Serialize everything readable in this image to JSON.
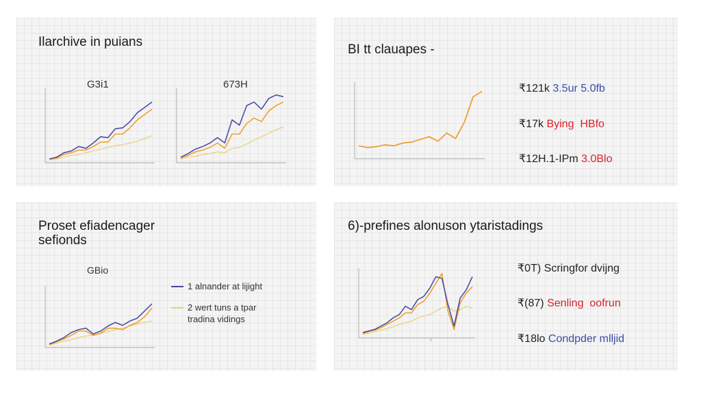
{
  "panels": {
    "tl": {
      "title": "Ilarchive in puians",
      "charts": [
        {
          "label": "G3i1"
        },
        {
          "label": "673H"
        }
      ]
    },
    "tr": {
      "title": "BI tt clauapes -",
      "stats": [
        {
          "prefix": "₹121k",
          "value": "3.5ur 5.0fb",
          "color": "#3a4ea8"
        },
        {
          "prefix": "₹17k",
          "value": "Bying  HBfo",
          "color": "#d8222a",
          "value_color": "#d8222a"
        },
        {
          "prefix": "₹12H.1-IPm",
          "value": "3.0Blo",
          "color": "#d8222a"
        }
      ]
    },
    "bl": {
      "title_line1": "Proset efiadencager",
      "title_line2": "sefionds",
      "chart_label": "GBio",
      "legend": [
        {
          "text": "1 alnander at lijight",
          "color": "#4a4aa0"
        },
        {
          "text": "2 wert tuns a tpar",
          "text2": "tradina vidings",
          "color": "#e8d070"
        }
      ]
    },
    "br": {
      "title": "6)-prefines alonuson ytaristadings",
      "stats": [
        {
          "prefix": "₹0T)",
          "value": "Scringfor dvijng",
          "color": "#222222"
        },
        {
          "prefix": "₹(87)",
          "value": "Senling  oofrun",
          "color": "#d8222a"
        },
        {
          "prefix": "₹18lo",
          "value": "Condpder mlljid",
          "color": "#3a4ea8"
        }
      ]
    }
  },
  "colors": {
    "series_blue": "#4b4fa3",
    "series_orange": "#f0a030",
    "series_yellow": "#e8d070"
  },
  "chart_data": [
    {
      "type": "line",
      "title": "G3i1",
      "x": [
        0,
        1,
        2,
        3,
        4,
        5,
        6,
        7,
        8,
        9,
        10,
        11,
        12,
        13,
        14
      ],
      "series": [
        {
          "values": [
            2,
            4,
            9,
            11,
            16,
            14,
            20,
            27,
            26,
            36,
            37,
            44,
            54,
            60,
            66
          ]
        },
        {
          "values": [
            2,
            3,
            7,
            9,
            12,
            12,
            16,
            21,
            21,
            30,
            30,
            37,
            46,
            52,
            58
          ]
        },
        {
          "values": [
            1,
            2,
            4,
            6,
            7,
            9,
            11,
            13,
            15,
            17,
            18,
            20,
            22,
            25,
            28
          ]
        }
      ]
    },
    {
      "type": "line",
      "title": "673H",
      "x": [
        0,
        1,
        2,
        3,
        4,
        5,
        6,
        7,
        8,
        9,
        10,
        11,
        12,
        13,
        14
      ],
      "series": [
        {
          "values": [
            4,
            8,
            13,
            16,
            20,
            26,
            20,
            46,
            40,
            62,
            66,
            58,
            70,
            74,
            72
          ]
        },
        {
          "values": [
            3,
            6,
            10,
            12,
            15,
            20,
            14,
            30,
            30,
            42,
            48,
            44,
            56,
            62,
            66
          ]
        },
        {
          "values": [
            2,
            4,
            5,
            7,
            8,
            10,
            9,
            14,
            15,
            19,
            23,
            27,
            31,
            35,
            38
          ]
        }
      ]
    },
    {
      "type": "line",
      "title": "",
      "x": [
        0,
        1,
        2,
        3,
        4,
        5,
        6,
        7,
        8,
        9,
        10,
        11,
        12,
        13,
        14
      ],
      "series": [
        {
          "values": [
            12,
            10,
            11,
            13,
            12,
            15,
            16,
            19,
            22,
            17,
            26,
            20,
            38,
            66,
            72
          ]
        }
      ]
    },
    {
      "type": "line",
      "title": "GBio",
      "x": [
        0,
        1,
        2,
        3,
        4,
        5,
        6,
        7,
        8,
        9,
        10,
        11,
        12,
        13,
        14
      ],
      "series": [
        {
          "values": [
            2,
            6,
            11,
            18,
            22,
            24,
            16,
            20,
            27,
            32,
            28,
            34,
            38,
            48,
            58
          ]
        },
        {
          "values": [
            1,
            5,
            9,
            14,
            20,
            20,
            14,
            17,
            24,
            24,
            22,
            28,
            32,
            40,
            52
          ]
        },
        {
          "values": [
            1,
            3,
            6,
            8,
            11,
            13,
            14,
            17,
            19,
            22,
            24,
            27,
            30,
            32,
            34
          ]
        }
      ]
    },
    {
      "type": "line",
      "title": "",
      "x": [
        0,
        1,
        2,
        3,
        4,
        5,
        6,
        7,
        8,
        9,
        10,
        11,
        12,
        13,
        14,
        15,
        16,
        17,
        18
      ],
      "series": [
        {
          "values": [
            4,
            6,
            8,
            12,
            16,
            22,
            26,
            36,
            32,
            44,
            48,
            58,
            72,
            70,
            38,
            12,
            46,
            56,
            72
          ]
        },
        {
          "values": [
            3,
            5,
            7,
            10,
            14,
            18,
            22,
            28,
            28,
            38,
            42,
            52,
            64,
            76,
            30,
            8,
            40,
            52,
            60
          ]
        },
        {
          "values": [
            2,
            3,
            5,
            7,
            9,
            11,
            14,
            16,
            18,
            22,
            24,
            26,
            30,
            34,
            36,
            30,
            32,
            36,
            34
          ]
        }
      ]
    }
  ]
}
